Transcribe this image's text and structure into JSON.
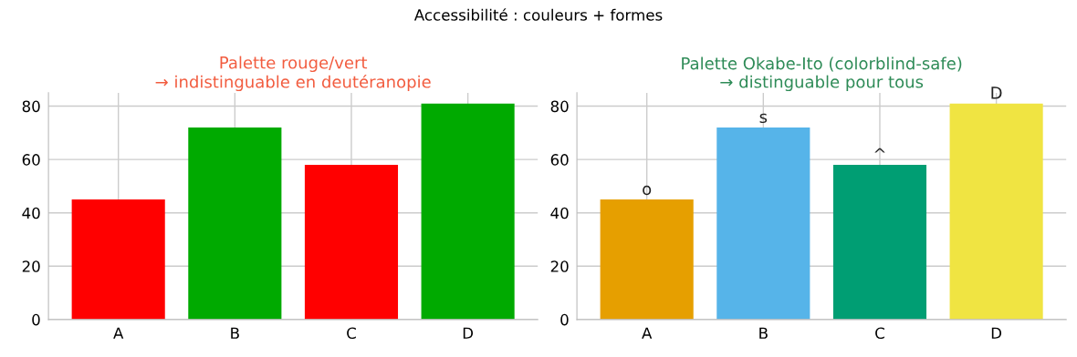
{
  "chart_data": [
    {
      "type": "bar",
      "title": "Palette rouge/vert\n→ indistinguable en deutéranopie",
      "annotations": [
        "Accessibilité : couleurs + formes"
      ],
      "categories": [
        "A",
        "B",
        "C",
        "D"
      ],
      "values": [
        45,
        72,
        58,
        81
      ],
      "colors": [
        "#ff0000",
        "#00aa00",
        "#ff0000",
        "#00aa00"
      ],
      "ylim": [
        0,
        85
      ],
      "yticks": [
        0,
        20,
        40,
        60,
        80
      ],
      "grid": true,
      "legend": false
    },
    {
      "type": "bar",
      "title": "Palette Okabe-Ito (colorblind-safe)\n→ distinguable pour tous",
      "annotations": [
        {
          "text": "o",
          "x": "A",
          "y": 45
        },
        {
          "text": "s",
          "x": "B",
          "y": 72
        },
        {
          "text": "^",
          "x": "C",
          "y": 58
        },
        {
          "text": "D",
          "x": "D",
          "y": 81
        }
      ],
      "categories": [
        "A",
        "B",
        "C",
        "D"
      ],
      "values": [
        45,
        72,
        58,
        81
      ],
      "colors": [
        "#e69f00",
        "#56b4e9",
        "#009e73",
        "#f0e442"
      ],
      "ylim": [
        0,
        85
      ],
      "yticks": [
        0,
        20,
        40,
        60,
        80
      ],
      "grid": true,
      "legend": false
    }
  ]
}
